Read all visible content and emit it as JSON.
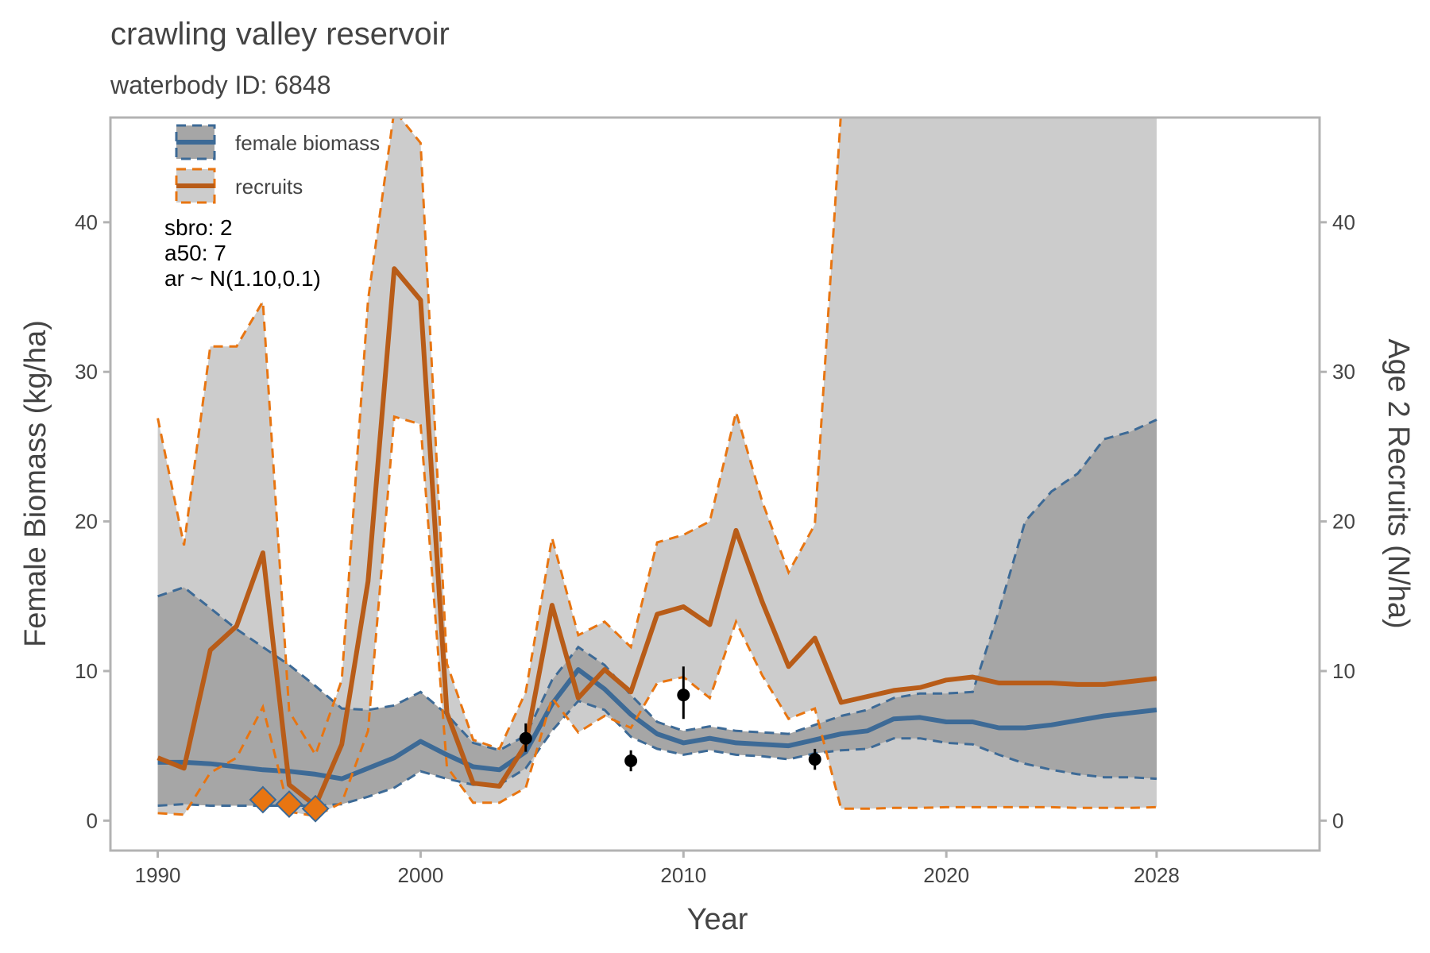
{
  "chart_data": {
    "type": "line",
    "title": "crawling valley reservoir",
    "subtitle": "waterbody ID: 6848",
    "xlabel": "Year",
    "ylabel_left": "Female Biomass (kg/ha)",
    "ylabel_right": "Age 2 Recruits (N/ha)",
    "xlim": [
      1988.2,
      2034.2
    ],
    "ylim": [
      -2,
      47
    ],
    "x_ticks": [
      1990,
      2000,
      2010,
      2020,
      2028
    ],
    "y_ticks": [
      0,
      10,
      20,
      30,
      40
    ],
    "grid": false,
    "legend_position": "top-left",
    "legend": [
      {
        "label": "female biomass",
        "color": "#3d6a96"
      },
      {
        "label": "recruits",
        "color": "#b85c18"
      }
    ],
    "annotations": [
      "sbro: 2",
      "a50: 7",
      "ar ~ N(1.10,0.1)"
    ],
    "series": [
      {
        "name": "female biomass",
        "color": "#3d6a96",
        "x": [
          1990,
          1991,
          1992,
          1993,
          1994,
          1995,
          1996,
          1997,
          1998,
          1999,
          2000,
          2001,
          2002,
          2003,
          2004,
          2005,
          2006,
          2007,
          2008,
          2009,
          2010,
          2011,
          2012,
          2013,
          2014,
          2015,
          2016,
          2017,
          2018,
          2019,
          2020,
          2021,
          2022,
          2023,
          2024,
          2025,
          2026,
          2027,
          2028
        ],
        "y": [
          3.9,
          3.9,
          3.8,
          3.6,
          3.4,
          3.3,
          3.1,
          2.8,
          3.5,
          4.2,
          5.3,
          4.4,
          3.6,
          3.4,
          4.6,
          7.8,
          10.1,
          8.8,
          7.1,
          5.8,
          5.2,
          5.5,
          5.2,
          5.1,
          5.0,
          5.4,
          5.8,
          6.0,
          6.8,
          6.9,
          6.6,
          6.6,
          6.2,
          6.2,
          6.4,
          6.7,
          7.0,
          7.2,
          7.4
        ],
        "lower": [
          1.0,
          1.1,
          1.0,
          1.0,
          1.0,
          1.0,
          1.0,
          1.1,
          1.6,
          2.2,
          3.3,
          2.8,
          2.4,
          2.4,
          3.5,
          6.0,
          8.0,
          7.4,
          5.6,
          4.8,
          4.4,
          4.7,
          4.4,
          4.3,
          4.1,
          4.5,
          4.7,
          4.8,
          5.5,
          5.5,
          5.2,
          5.1,
          4.4,
          3.8,
          3.4,
          3.1,
          2.9,
          2.9,
          2.8
        ],
        "upper": [
          15.0,
          15.6,
          14.2,
          12.8,
          11.6,
          10.4,
          9.0,
          7.5,
          7.4,
          7.7,
          8.6,
          7.1,
          5.2,
          4.7,
          5.7,
          9.4,
          11.6,
          10.4,
          8.4,
          6.6,
          6.0,
          6.3,
          6.0,
          5.9,
          5.8,
          6.4,
          7.0,
          7.4,
          8.2,
          8.5,
          8.5,
          8.6,
          14.0,
          20.0,
          22.0,
          23.2,
          25.5,
          26.0,
          26.8
        ]
      },
      {
        "name": "recruits",
        "color": "#b85c18",
        "x": [
          1990,
          1991,
          1992,
          1993,
          1994,
          1995,
          1996,
          1997,
          1998,
          1999,
          2000,
          2001,
          2002,
          2003,
          2004,
          2005,
          2006,
          2007,
          2008,
          2009,
          2010,
          2011,
          2012,
          2013,
          2014,
          2015,
          2016,
          2017,
          2018,
          2019,
          2020,
          2021,
          2022,
          2023,
          2024,
          2025,
          2026,
          2027,
          2028
        ],
        "y": [
          4.2,
          3.5,
          11.4,
          13.0,
          17.9,
          2.4,
          1.0,
          5.1,
          16.0,
          36.9,
          34.8,
          7.2,
          2.5,
          2.3,
          5.1,
          14.4,
          8.2,
          10.1,
          8.6,
          13.8,
          14.3,
          13.1,
          19.4,
          14.6,
          10.3,
          12.2,
          7.9,
          8.3,
          8.7,
          8.9,
          9.4,
          9.6,
          9.2,
          9.2,
          9.2,
          9.1,
          9.1,
          9.3,
          9.5
        ],
        "lower": [
          0.5,
          0.4,
          3.2,
          4.2,
          7.6,
          0.6,
          0.3,
          1.2,
          6.0,
          27.0,
          26.5,
          3.6,
          1.2,
          1.2,
          2.2,
          8.2,
          5.9,
          7.0,
          6.2,
          9.2,
          9.6,
          8.2,
          13.3,
          9.7,
          6.8,
          7.5,
          0.8,
          0.8,
          0.85,
          0.85,
          0.9,
          0.9,
          0.9,
          0.9,
          0.9,
          0.85,
          0.85,
          0.85,
          0.9
        ],
        "upper": [
          26.9,
          18.4,
          31.7,
          31.7,
          34.7,
          7.3,
          4.4,
          9.4,
          34.8,
          47.5,
          45.3,
          10.5,
          5.4,
          4.8,
          8.6,
          18.9,
          12.4,
          13.3,
          11.6,
          18.6,
          19.1,
          20.0,
          27.3,
          21.3,
          16.6,
          19.8,
          47.5,
          47.5,
          47.5,
          47.5,
          47.5,
          47.5,
          47.5,
          47.5,
          47.5,
          47.5,
          47.5,
          47.5,
          47.5
        ]
      }
    ],
    "observed_biomass": [
      {
        "x": 2004,
        "y": 5.5,
        "low": 4.6,
        "high": 6.5
      },
      {
        "x": 2008,
        "y": 4.0,
        "low": 3.3,
        "high": 4.7
      },
      {
        "x": 2010,
        "y": 8.4,
        "low": 6.8,
        "high": 10.3
      },
      {
        "x": 2015,
        "y": 4.1,
        "low": 3.4,
        "high": 4.8
      }
    ],
    "observed_recruits": [
      {
        "x": 1994,
        "y": 1.4
      },
      {
        "x": 1995,
        "y": 1.1
      },
      {
        "x": 1996,
        "y": 0.8
      }
    ]
  }
}
